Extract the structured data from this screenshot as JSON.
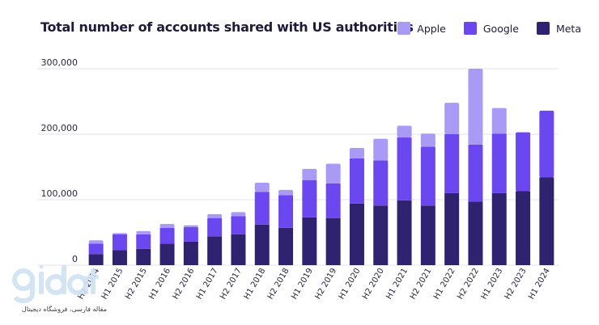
{
  "chart_data": {
    "type": "bar",
    "stacked": true,
    "title": "Total number of accounts shared with US authorities",
    "xlabel": "",
    "ylabel": "",
    "ylim": [
      0,
      300000
    ],
    "yticks": [
      0,
      100000,
      200000,
      300000
    ],
    "ytick_labels": [
      "0",
      "100,000",
      "200,000",
      "300,000"
    ],
    "grid": true,
    "legend_position": "top-right",
    "categories": [
      "H2 2014",
      "H1 2015",
      "H2 2015",
      "H1 2016",
      "H2 2016",
      "H1 2017",
      "H2 2017",
      "H1 2018",
      "H2 2018",
      "H1 2019",
      "H2 2019",
      "H1 2020",
      "H2 2020",
      "H1 2021",
      "H2 2021",
      "H1 2022",
      "H2 2022",
      "H1 2023",
      "H2 2023",
      "H1 2024"
    ],
    "category_labels": [
      "H2 2014",
      "H1 2015",
      "H2 2015",
      "H1 2016",
      "H2 2016",
      "H1 2017",
      "H2 2017",
      "H1 2018",
      "H2 2018",
      "H1 2019",
      "H2 2019",
      "H1 2020",
      "H2 2020",
      "H1 2021",
      "H2 2021",
      "H1 2022",
      "H2 2022",
      "H1 2023",
      "H2 2023",
      "H1 2024"
    ],
    "series": [
      {
        "name": "Meta",
        "color": "#2f2270",
        "values": [
          17000,
          23000,
          25000,
          33000,
          36000,
          44000,
          47000,
          62000,
          57000,
          73000,
          72000,
          94000,
          91000,
          99000,
          91000,
          110000,
          97000,
          110000,
          113000,
          134000
        ]
      },
      {
        "name": "Google",
        "color": "#6b47f0",
        "values": [
          16000,
          24000,
          22000,
          24000,
          22000,
          28000,
          28000,
          50000,
          50000,
          57000,
          53000,
          69000,
          69000,
          96000,
          90000,
          90000,
          87000,
          91000,
          90000,
          102000
        ]
      },
      {
        "name": "Apple",
        "color": "#a99af5",
        "values": [
          5000,
          2000,
          5000,
          6000,
          3000,
          6000,
          6000,
          14000,
          8000,
          17000,
          30000,
          16000,
          33000,
          18000,
          20000,
          48000,
          116000,
          39000,
          0,
          0
        ]
      }
    ]
  },
  "legend": [
    {
      "name": "Apple",
      "color": "#a99af5"
    },
    {
      "name": "Google",
      "color": "#6b47f0"
    },
    {
      "name": "Meta",
      "color": "#2f2270"
    }
  ],
  "watermark": {
    "logo_text": "gidat",
    "tagline": "مقاله فارسی، فروشگاه دیجیتال",
    "icon": "gidat-logo-icon"
  }
}
